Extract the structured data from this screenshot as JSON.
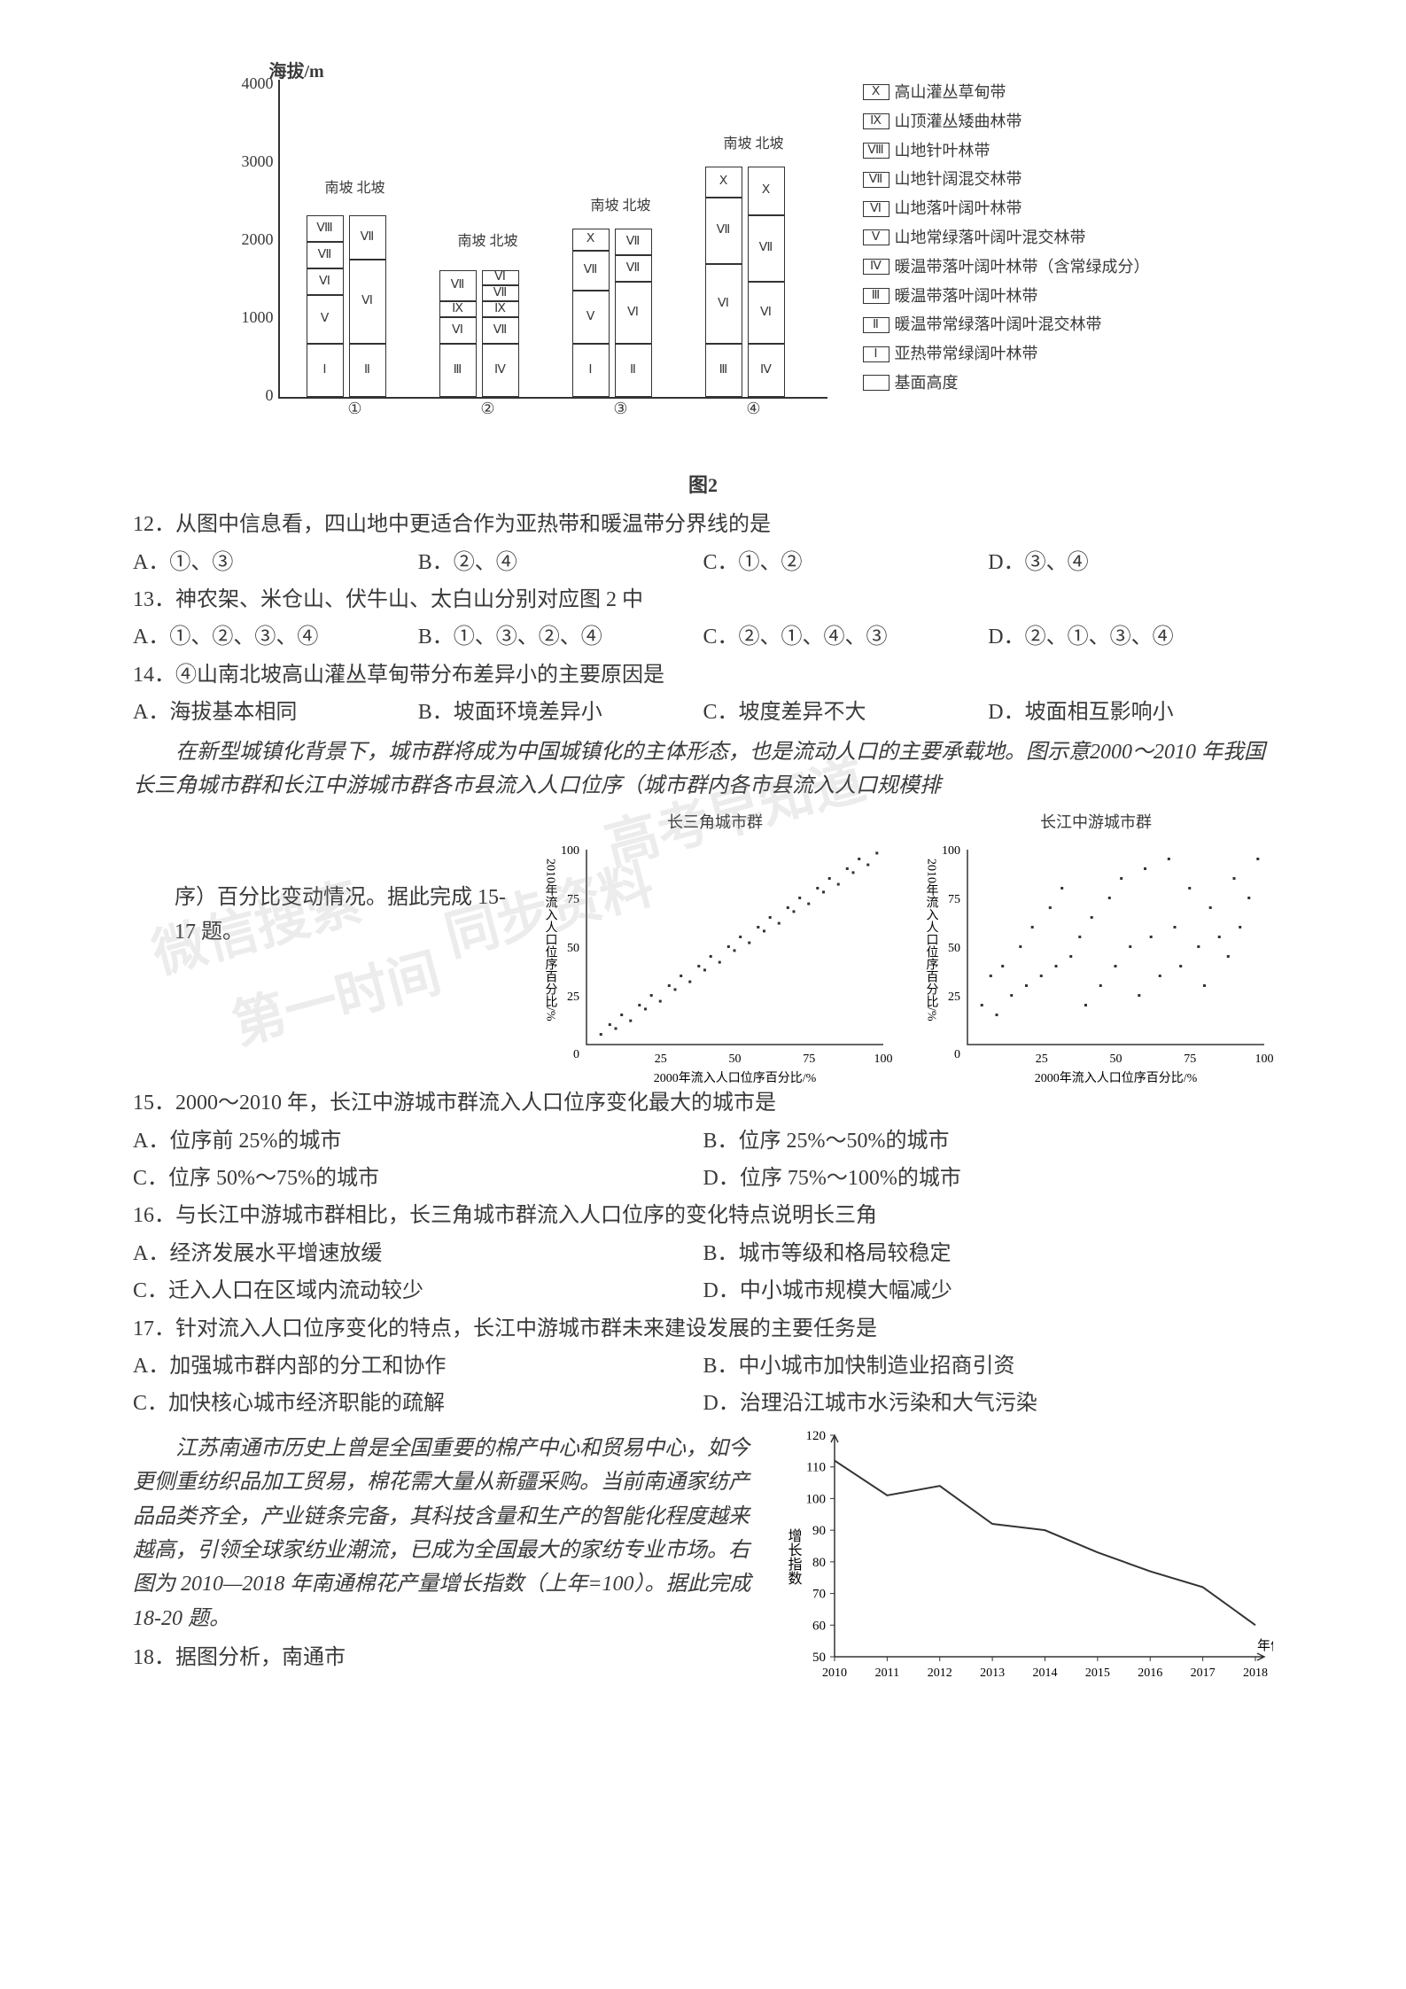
{
  "topChart": {
    "yAxisTitle": "海拔/m",
    "yTicks": [
      0,
      1000,
      2000,
      3000,
      4000
    ],
    "slopeLabels": [
      "南坡",
      "北坡"
    ],
    "groups": [
      {
        "label": "①",
        "south": [
          "Ⅰ",
          "Ⅴ",
          "Ⅵ",
          "Ⅶ",
          "Ⅷ"
        ],
        "north": [
          "Ⅱ",
          "Ⅵ",
          "Ⅶ"
        ],
        "sHeights": [
          60,
          55,
          30,
          30,
          30
        ],
        "nHeights": [
          60,
          95,
          50
        ],
        "labelTop": 110
      },
      {
        "label": "②",
        "south": [
          "Ⅲ",
          "Ⅵ",
          "Ⅸ",
          "Ⅶ"
        ],
        "north": [
          "Ⅳ",
          "Ⅶ",
          "Ⅸ",
          "Ⅶ",
          "Ⅵ"
        ],
        "sHeights": [
          60,
          30,
          18,
          35
        ],
        "nHeights": [
          60,
          30,
          18,
          18,
          17
        ],
        "labelTop": 170
      },
      {
        "label": "③",
        "south": [
          "Ⅰ",
          "Ⅴ",
          "Ⅶ",
          "Ⅹ"
        ],
        "north": [
          "Ⅱ",
          "Ⅵ",
          "Ⅶ",
          "Ⅶ"
        ],
        "sHeights": [
          60,
          60,
          45,
          25
        ],
        "nHeights": [
          60,
          70,
          30,
          30
        ],
        "labelTop": 130
      },
      {
        "label": "④",
        "south": [
          "Ⅲ",
          "Ⅵ",
          "Ⅶ",
          "Ⅹ"
        ],
        "north": [
          "Ⅳ",
          "Ⅵ",
          "Ⅶ",
          "Ⅹ"
        ],
        "sHeights": [
          60,
          90,
          75,
          35
        ],
        "nHeights": [
          60,
          70,
          75,
          55
        ],
        "labelTop": 60
      }
    ],
    "legend": [
      {
        "mark": "Ⅹ",
        "text": "高山灌丛草甸带"
      },
      {
        "mark": "Ⅸ",
        "text": "山顶灌丛矮曲林带"
      },
      {
        "mark": "Ⅷ",
        "text": "山地针叶林带"
      },
      {
        "mark": "Ⅶ",
        "text": "山地针阔混交林带"
      },
      {
        "mark": "Ⅵ",
        "text": "山地落叶阔叶林带"
      },
      {
        "mark": "Ⅴ",
        "text": "山地常绿落叶阔叶混交林带"
      },
      {
        "mark": "Ⅳ",
        "text": "暖温带落叶阔叶林带（含常绿成分）"
      },
      {
        "mark": "Ⅲ",
        "text": "暖温带落叶阔叶林带"
      },
      {
        "mark": "Ⅱ",
        "text": "暖温带常绿落叶阔叶混交林带"
      },
      {
        "mark": "Ⅰ",
        "text": "亚热带常绿阔叶林带"
      },
      {
        "mark": "",
        "text": "基面高度"
      }
    ],
    "caption": "图2"
  },
  "q12": {
    "stem": "12．从图中信息看，四山地中更适合作为亚热带和暖温带分界线的是",
    "A": "A．①、③",
    "B": "B．②、④",
    "C": "C．①、②",
    "D": "D．③、④"
  },
  "q13": {
    "stem": "13．神农架、米仓山、伏牛山、太白山分别对应图 2 中",
    "A": "A．①、②、③、④",
    "B": "B．①、③、②、④",
    "C": "C．②、①、④、③",
    "D": "D．②、①、③、④"
  },
  "q14": {
    "stem": "14．④山南北坡高山灌丛草甸带分布差异小的主要原因是",
    "A": "A．海拔基本相同",
    "B": "B．坡面环境差异小",
    "C": "C．坡度差异不大",
    "D": "D．坡面相互影响小"
  },
  "intro1": "在新型城镇化背景下，城市群将成为中国城镇化的主体形态，也是流动人口的主要承载地。图示意2000～2010 年我国长三角城市群和长江中游城市群各市县流入人口位序（城市群内各市县流入人口规模排",
  "intro1b": "序）百分比变动情况。据此完成 15-17 题。",
  "scatter": {
    "titles": [
      "长三角城市群",
      "长江中游城市群"
    ],
    "yLabel": "2010年流入人口位序百分比/%",
    "xLabel": "2000年流入人口位序百分比/%",
    "ticks": [
      0,
      25,
      50,
      75,
      100
    ],
    "points1": [
      [
        5,
        5
      ],
      [
        8,
        10
      ],
      [
        10,
        8
      ],
      [
        12,
        15
      ],
      [
        15,
        12
      ],
      [
        18,
        20
      ],
      [
        20,
        18
      ],
      [
        22,
        25
      ],
      [
        25,
        22
      ],
      [
        28,
        30
      ],
      [
        30,
        28
      ],
      [
        32,
        35
      ],
      [
        35,
        32
      ],
      [
        38,
        40
      ],
      [
        40,
        38
      ],
      [
        42,
        45
      ],
      [
        45,
        42
      ],
      [
        48,
        50
      ],
      [
        50,
        48
      ],
      [
        52,
        55
      ],
      [
        55,
        52
      ],
      [
        58,
        60
      ],
      [
        60,
        58
      ],
      [
        62,
        65
      ],
      [
        65,
        62
      ],
      [
        68,
        70
      ],
      [
        70,
        68
      ],
      [
        72,
        75
      ],
      [
        75,
        72
      ],
      [
        78,
        80
      ],
      [
        80,
        78
      ],
      [
        82,
        85
      ],
      [
        85,
        82
      ],
      [
        88,
        90
      ],
      [
        90,
        88
      ],
      [
        92,
        95
      ],
      [
        95,
        92
      ],
      [
        98,
        98
      ]
    ],
    "points2": [
      [
        5,
        20
      ],
      [
        8,
        35
      ],
      [
        10,
        15
      ],
      [
        12,
        40
      ],
      [
        15,
        25
      ],
      [
        18,
        50
      ],
      [
        20,
        30
      ],
      [
        22,
        60
      ],
      [
        25,
        35
      ],
      [
        28,
        70
      ],
      [
        30,
        40
      ],
      [
        32,
        80
      ],
      [
        35,
        45
      ],
      [
        38,
        55
      ],
      [
        40,
        20
      ],
      [
        42,
        65
      ],
      [
        45,
        30
      ],
      [
        48,
        75
      ],
      [
        50,
        40
      ],
      [
        52,
        85
      ],
      [
        55,
        50
      ],
      [
        58,
        25
      ],
      [
        60,
        90
      ],
      [
        62,
        55
      ],
      [
        65,
        35
      ],
      [
        68,
        95
      ],
      [
        70,
        60
      ],
      [
        72,
        40
      ],
      [
        75,
        80
      ],
      [
        78,
        50
      ],
      [
        80,
        30
      ],
      [
        82,
        70
      ],
      [
        85,
        55
      ],
      [
        88,
        45
      ],
      [
        90,
        85
      ],
      [
        92,
        60
      ],
      [
        95,
        75
      ],
      [
        98,
        95
      ]
    ]
  },
  "q15": {
    "stem": "15．2000～2010 年，长江中游城市群流入人口位序变化最大的城市是",
    "A": "A．位序前 25%的城市",
    "B": "B．位序 25%～50%的城市",
    "C": "C．位序 50%～75%的城市",
    "D": "D．位序 75%～100%的城市"
  },
  "q16": {
    "stem": "16．与长江中游城市群相比，长三角城市群流入人口位序的变化特点说明长三角",
    "A": "A．经济发展水平增速放缓",
    "B": "B．城市等级和格局较稳定",
    "C": "C．迁入人口在区域内流动较少",
    "D": "D．中小城市规模大幅减少"
  },
  "q17": {
    "stem": "17．针对流入人口位序变化的特点，长江中游城市群未来建设发展的主要任务是",
    "A": "A．加强城市群内部的分工和协作",
    "B": "B．中小城市加快制造业招商引资",
    "C": "C．加快核心城市经济职能的疏解",
    "D": "D．治理沿江城市水污染和大气污染"
  },
  "intro2": "江苏南通市历史上曾是全国重要的棉产中心和贸易中心，如今更侧重纺织品加工贸易，棉花需大量从新疆采购。当前南通家纺产品品类齐全，产业链条完备，其科技含量和生产的智能化程度越来越高，引领全球家纺业潮流，已成为全国最大的家纺专业市场。右图为 2010—2018 年南通棉花产量增长指数（上年=100）。据此完成 18-20 题。",
  "q18": {
    "stem": "18．据图分析，南通市"
  },
  "lineChart": {
    "yLabel": "增长指数",
    "xLabel": "年份",
    "yTicks": [
      50,
      60,
      70,
      80,
      90,
      100,
      110,
      120
    ],
    "xTicks": [
      "2010",
      "2011",
      "2012",
      "2013",
      "2014",
      "2015",
      "2016",
      "2017",
      "2018"
    ],
    "data": [
      112,
      101,
      104,
      92,
      90,
      83,
      77,
      72,
      60
    ],
    "lineColor": "#333333",
    "background": "#ffffff"
  },
  "watermarks": [
    "高考早知道",
    "同步资料",
    "微信搜索",
    "第一时间"
  ]
}
